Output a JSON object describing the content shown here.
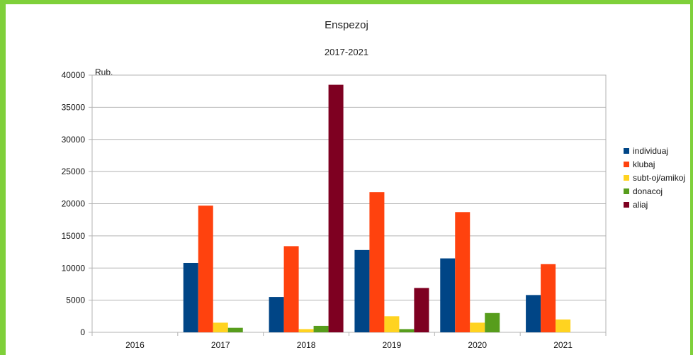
{
  "chart_data": {
    "type": "bar",
    "title": "Enspezoj",
    "subtitle": "2017-2021",
    "ylabel": "Rub.",
    "xlabel": "",
    "categories": [
      "2016",
      "2017",
      "2018",
      "2019",
      "2020",
      "2021"
    ],
    "ylim": [
      0,
      40000
    ],
    "yticks": [
      0,
      5000,
      10000,
      15000,
      20000,
      25000,
      30000,
      35000,
      40000
    ],
    "grid": true,
    "legend_position": "right",
    "series": [
      {
        "name": "individuaj",
        "color": "#004586",
        "values": [
          0,
          10800,
          5500,
          12800,
          11500,
          5800
        ]
      },
      {
        "name": "klubaj",
        "color": "#ff420e",
        "values": [
          0,
          19700,
          13400,
          21800,
          18700,
          10600
        ]
      },
      {
        "name": "subt-oj/amikoj",
        "color": "#ffd320",
        "values": [
          0,
          1500,
          500,
          2500,
          1500,
          2000
        ]
      },
      {
        "name": "donacoj",
        "color": "#579d1c",
        "values": [
          0,
          700,
          1000,
          500,
          3000,
          0
        ]
      },
      {
        "name": "aliaj",
        "color": "#7e0021",
        "values": [
          0,
          0,
          38500,
          6900,
          0,
          0
        ]
      }
    ]
  }
}
